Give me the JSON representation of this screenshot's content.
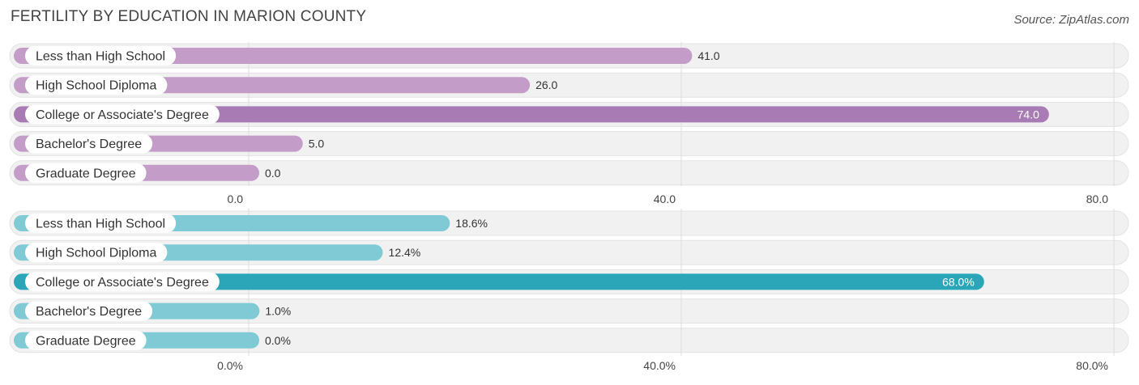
{
  "title": "FERTILITY BY EDUCATION IN MARION COUNTY",
  "source": "Source: ZipAtlas.com",
  "chart_data": [
    {
      "type": "bar",
      "orientation": "horizontal",
      "categories": [
        "Less than High School",
        "High School Diploma",
        "College or Associate's Degree",
        "Bachelor's Degree",
        "Graduate Degree"
      ],
      "values": [
        41.0,
        26.0,
        74.0,
        5.0,
        0.0
      ],
      "value_labels": [
        "41.0",
        "26.0",
        "74.0",
        "5.0",
        "0.0"
      ],
      "xlim": [
        0,
        80
      ],
      "ticks": [
        0,
        40,
        80
      ],
      "tick_labels": [
        "0.0",
        "40.0",
        "80.0"
      ],
      "highlight_index": 2,
      "colors": {
        "bar": "#c39dc8",
        "highlight": "#a97bb5",
        "track": "#f1f1f1"
      },
      "grid": true
    },
    {
      "type": "bar",
      "orientation": "horizontal",
      "categories": [
        "Less than High School",
        "High School Diploma",
        "College or Associate's Degree",
        "Bachelor's Degree",
        "Graduate Degree"
      ],
      "values": [
        18.6,
        12.4,
        68.0,
        1.0,
        0.0
      ],
      "value_labels": [
        "18.6%",
        "12.4%",
        "68.0%",
        "1.0%",
        "0.0%"
      ],
      "xlim": [
        0,
        80
      ],
      "ticks": [
        0,
        40,
        80
      ],
      "tick_labels": [
        "0.0%",
        "40.0%",
        "80.0%"
      ],
      "highlight_index": 2,
      "colors": {
        "bar": "#7fcad4",
        "highlight": "#2aa6b8",
        "track": "#f1f1f1"
      },
      "grid": true
    }
  ]
}
